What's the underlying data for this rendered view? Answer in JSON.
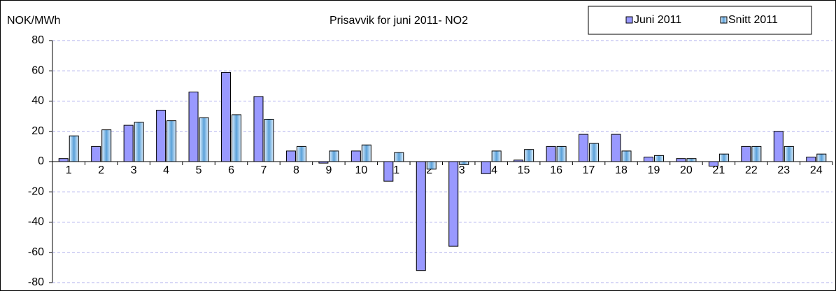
{
  "chart_data": {
    "type": "bar",
    "title": "Prisavvik for  juni 2011- NO2",
    "y_label": "NOK/MWh",
    "categories": [
      "1",
      "2",
      "3",
      "4",
      "5",
      "6",
      "7",
      "8",
      "9",
      "10",
      "11",
      "12",
      "13",
      "14",
      "15",
      "16",
      "17",
      "18",
      "19",
      "20",
      "21",
      "22",
      "23",
      "24"
    ],
    "series": [
      {
        "name": "Juni 2011",
        "color": "#9999ff",
        "values": [
          2,
          10,
          24,
          34,
          46,
          59,
          43,
          7,
          -1,
          7,
          -13,
          -72,
          -56,
          -8,
          1,
          10,
          18,
          18,
          3,
          2,
          -3,
          10,
          20,
          3
        ]
      },
      {
        "name": "Snitt 2011",
        "color": "#99ccff",
        "values": [
          17,
          21,
          26,
          27,
          29,
          31,
          28,
          10,
          7,
          11,
          6,
          -5,
          -2,
          7,
          8,
          10,
          12,
          7,
          4,
          2,
          5,
          10,
          10,
          5
        ]
      }
    ],
    "ylim": [
      -80,
      80
    ],
    "yticks": [
      -80,
      -60,
      -40,
      -20,
      0,
      20,
      40,
      60,
      80
    ],
    "grid": true,
    "legend": "upper right"
  }
}
